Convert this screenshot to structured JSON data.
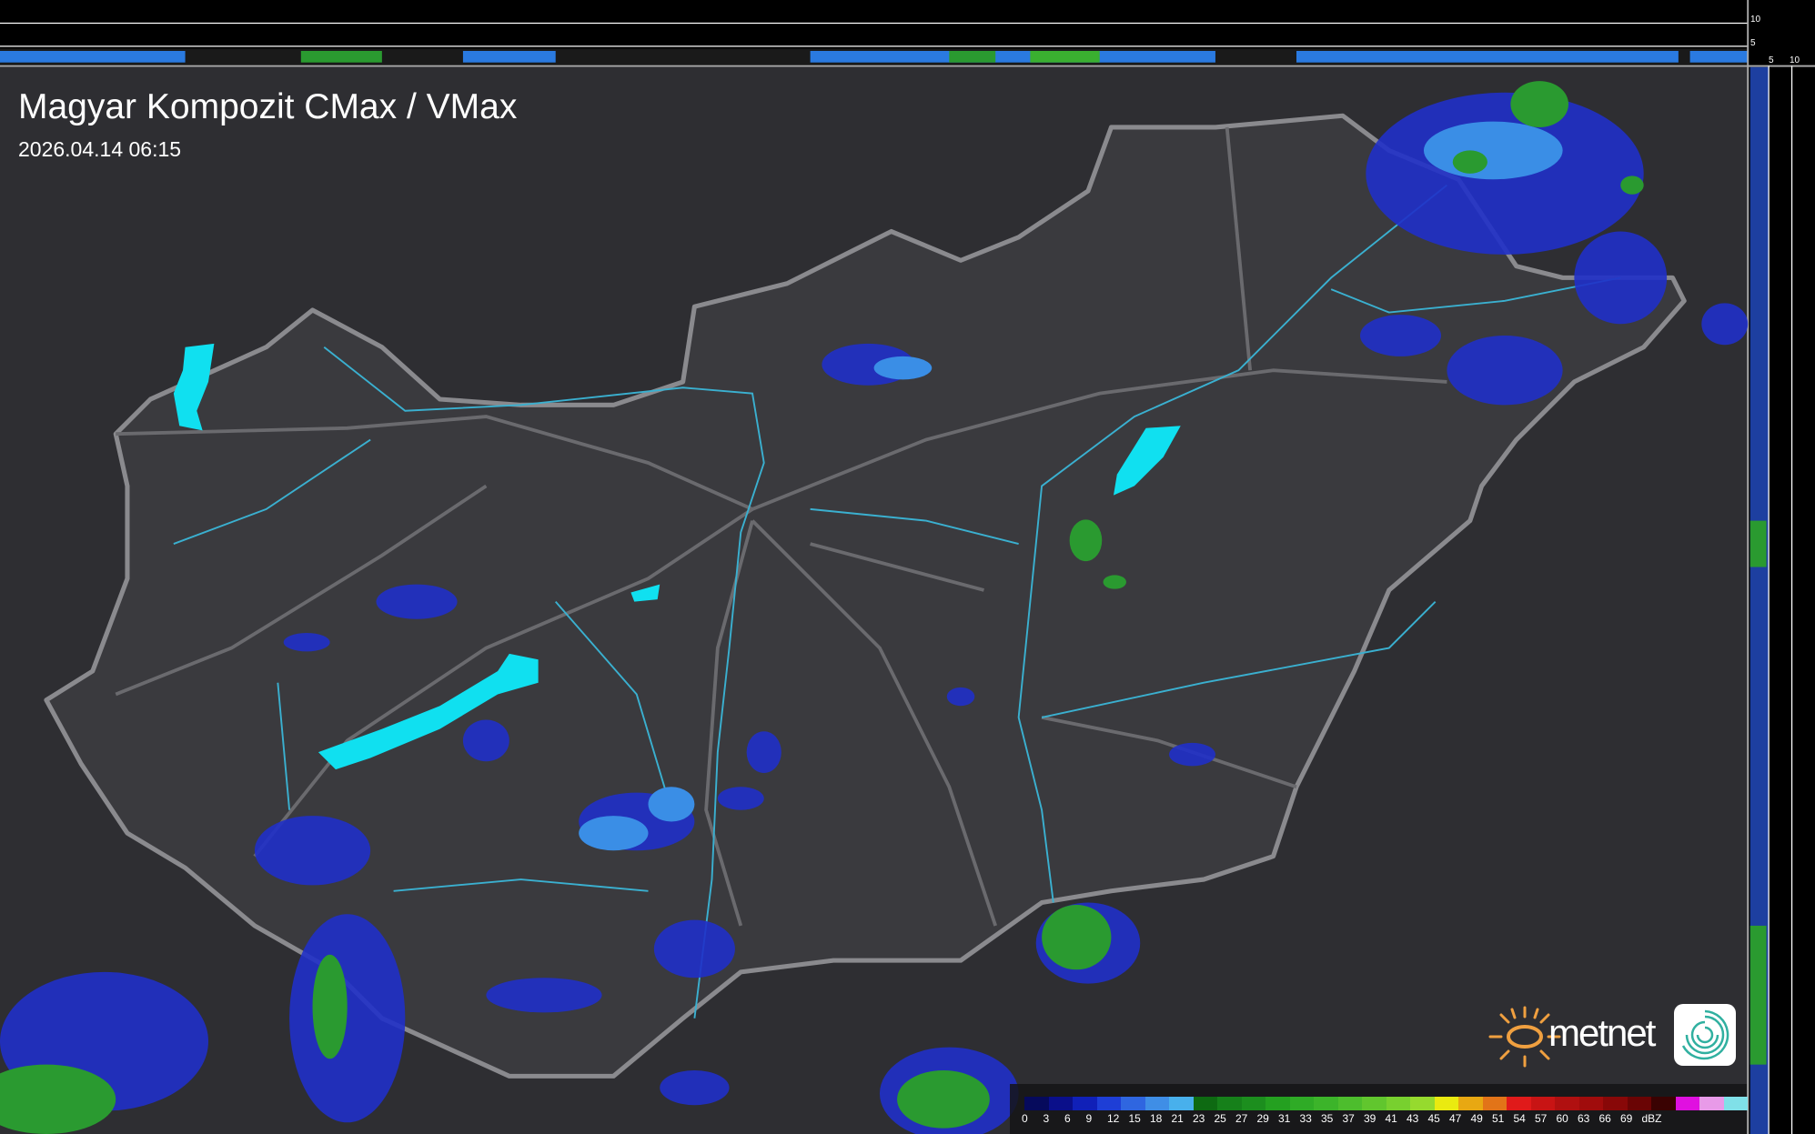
{
  "title": "Magyar Kompozit CMax / VMax",
  "timestamp": "2026.04.14 06:15",
  "side_axis": {
    "vertical_ticks": [
      "10",
      "5"
    ],
    "horizontal_ticks": [
      "5",
      "10"
    ]
  },
  "legend": {
    "unit": "dBZ",
    "labels": [
      "0",
      "3",
      "6",
      "9",
      "12",
      "15",
      "18",
      "21",
      "23",
      "25",
      "27",
      "29",
      "31",
      "33",
      "35",
      "37",
      "39",
      "41",
      "43",
      "45",
      "47",
      "49",
      "51",
      "54",
      "57",
      "60",
      "63",
      "66",
      "69"
    ],
    "colors": [
      "#060a5c",
      "#0a0f8a",
      "#1020b8",
      "#1e3ed6",
      "#2f66e0",
      "#3f8ee6",
      "#48b0ec",
      "#0e6a12",
      "#16801a",
      "#1c8e1e",
      "#24a020",
      "#2fab26",
      "#3cb42a",
      "#4dbd2d",
      "#61c62e",
      "#78d02f",
      "#96da2e",
      "#eaea10",
      "#e8a812",
      "#e27418",
      "#e01a1a",
      "#c81414",
      "#b01010",
      "#a00c0c",
      "#880808",
      "#6a0404",
      "#3a0202",
      "#e010e0",
      "#e89ae8",
      "#80e0e8"
    ]
  },
  "brand": {
    "name": "metnet",
    "sun_color": "#f0a040",
    "swirl_color": "#30b0a0"
  },
  "map_colors": {
    "background": "#2f2f33",
    "country": "#3a3a3e",
    "border": "#8a8a8e",
    "rivers": "#3ab0d0",
    "lakes": "#10e0f0"
  }
}
